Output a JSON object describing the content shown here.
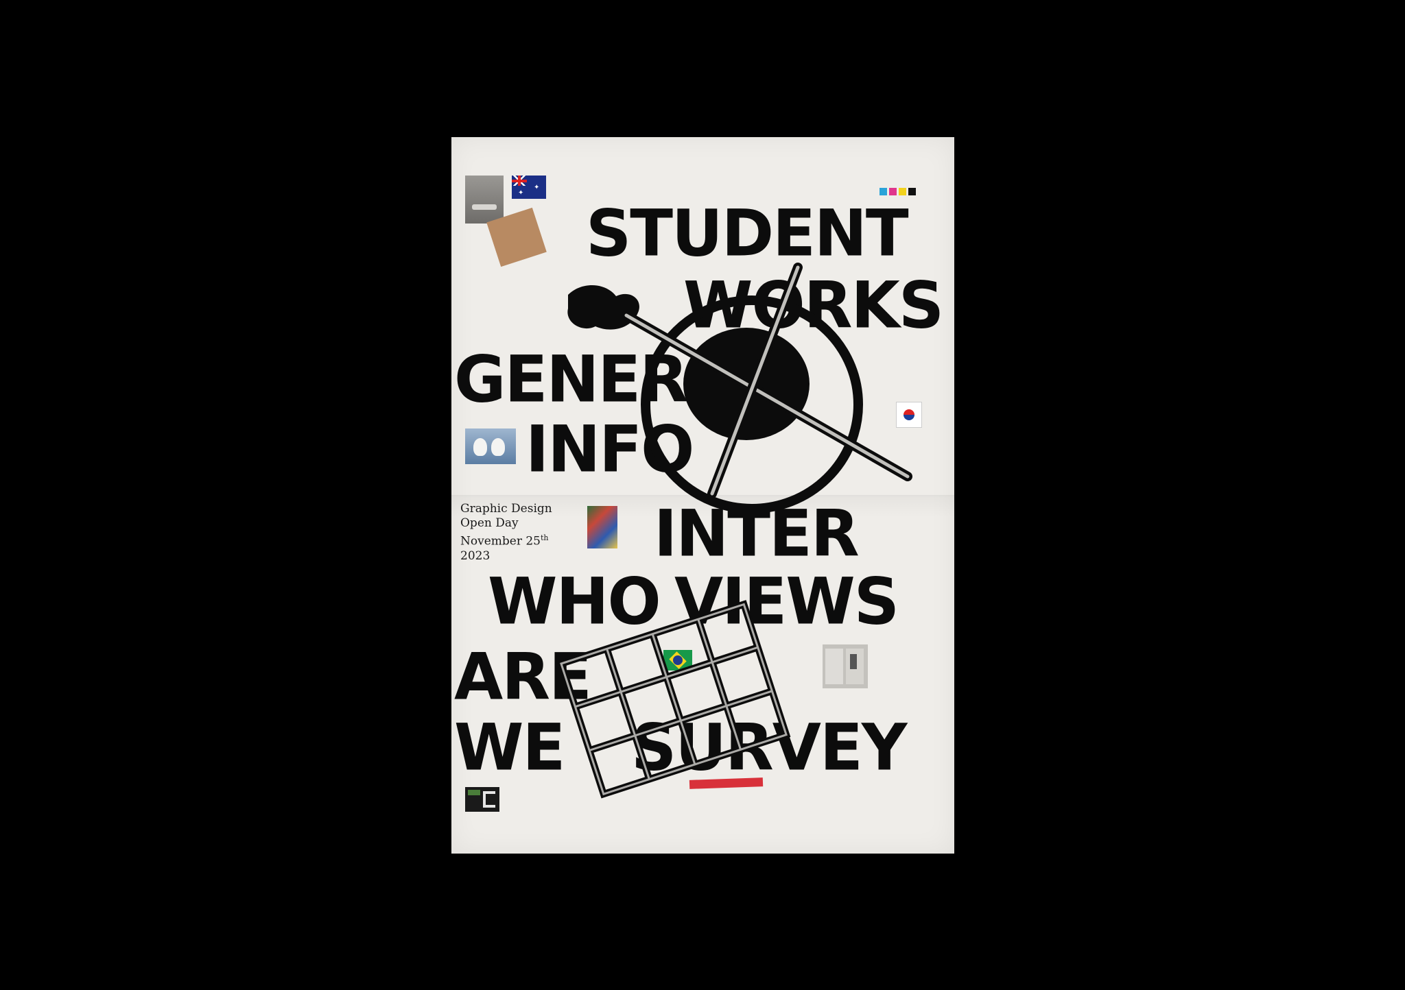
{
  "headlines": {
    "student": "STUDENT",
    "works": "WORKS",
    "general": "GENERAL",
    "info": "INFO",
    "inter": "INTER",
    "who": "WHO",
    "views": "VIEWS",
    "are": "ARE",
    "we": "WE",
    "survey": "SURVEY"
  },
  "info_block": {
    "line1": "Graphic Design",
    "line2": "Open Day",
    "line3": "November 25",
    "suffix": "th",
    "line4": "2023"
  },
  "colors": {
    "paper": "#efede9",
    "ink": "#0c0c0c",
    "accent_red": "#d8313a",
    "cyan": "#2aa3d8",
    "magenta": "#e0368c",
    "yellow": "#f2d21d"
  },
  "images": {
    "australia_flag": "australia-flag-icon",
    "korea_flag": "south-korea-flag-icon",
    "brazil_flag": "brazil-flag-icon"
  }
}
